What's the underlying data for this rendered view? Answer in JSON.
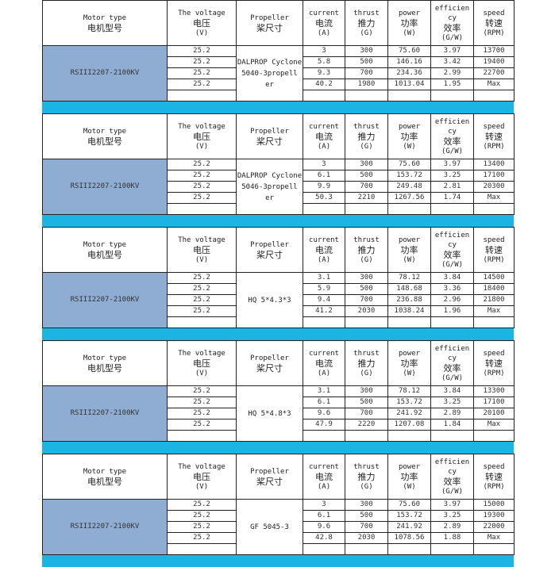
{
  "header": {
    "motor": {
      "en": "Motor type",
      "cn": "电机型号"
    },
    "voltage": {
      "en": "The voltage",
      "cn": "电压",
      "unit": "(V)"
    },
    "propeller": {
      "en": "Propeller",
      "cn": "桨尺寸"
    },
    "current": {
      "en": "current",
      "cn": "电流",
      "unit": "(A)"
    },
    "thrust": {
      "en": "thrust",
      "cn": "推力",
      "unit": "(G)"
    },
    "power": {
      "en": "power",
      "cn": "功率",
      "unit": "(W)"
    },
    "efficiency": {
      "en": "efficien cy",
      "cn": "效率",
      "unit": "(G/W)"
    },
    "speed": {
      "en": "speed",
      "cn": "转速",
      "unit": "(RPM)"
    }
  },
  "colors": {
    "band": "#1cb4e2",
    "motor_cell": "#8fadd3"
  },
  "blocks": [
    {
      "motor": "RSIII2207-2100KV",
      "propeller": "DALPROP Cyclone 5040-3propell er",
      "rows": [
        [
          "25.2",
          "3",
          "300",
          "75.60",
          "3.97",
          "13700"
        ],
        [
          "25.2",
          "5.8",
          "500",
          "146.16",
          "3.42",
          "19400"
        ],
        [
          "25.2",
          "9.3",
          "700",
          "234.36",
          "2.99",
          "22700"
        ],
        [
          "25.2",
          "40.2",
          "1980",
          "1013.04",
          "1.95",
          "Max"
        ]
      ]
    },
    {
      "motor": "RSIII2207-2100KV",
      "propeller": "DALPROP Cyclone 5046-3propell er",
      "rows": [
        [
          "25.2",
          "3",
          "300",
          "75.60",
          "3.97",
          "13400"
        ],
        [
          "25.2",
          "6.1",
          "500",
          "153.72",
          "3.25",
          "17100"
        ],
        [
          "25.2",
          "9.9",
          "700",
          "249.48",
          "2.81",
          "20300"
        ],
        [
          "25.2",
          "50.3",
          "2210",
          "1267.56",
          "1.74",
          "Max"
        ]
      ]
    },
    {
      "motor": "RSIII2207-2100KV",
      "propeller": "HQ 5*4.3*3",
      "rows": [
        [
          "25.2",
          "3.1",
          "300",
          "78.12",
          "3.84",
          "14500"
        ],
        [
          "25.2",
          "5.9",
          "500",
          "148.68",
          "3.36",
          "18400"
        ],
        [
          "25.2",
          "9.4",
          "700",
          "236.88",
          "2.96",
          "21800"
        ],
        [
          "25.2",
          "41.2",
          "2030",
          "1038.24",
          "1.96",
          "Max"
        ]
      ]
    },
    {
      "motor": "RSIII2207-2100KV",
      "propeller": "HQ 5*4.8*3",
      "rows": [
        [
          "25.2",
          "3.1",
          "300",
          "78.12",
          "3.84",
          "13300"
        ],
        [
          "25.2",
          "6.1",
          "500",
          "153.72",
          "3.25",
          "17100"
        ],
        [
          "25.2",
          "9.6",
          "700",
          "241.92",
          "2.89",
          "20100"
        ],
        [
          "25.2",
          "47.9",
          "2220",
          "1207.08",
          "1.84",
          "Max"
        ]
      ]
    },
    {
      "motor": "RSIII2207-2100KV",
      "propeller": "GF 5045-3",
      "rows": [
        [
          "25.2",
          "3",
          "300",
          "75.60",
          "3.97",
          "15000"
        ],
        [
          "25.2",
          "6.1",
          "500",
          "153.72",
          "3.25",
          "19300"
        ],
        [
          "25.2",
          "9.6",
          "700",
          "241.92",
          "2.89",
          "22000"
        ],
        [
          "25.2",
          "42.8",
          "2030",
          "1078.56",
          "1.88",
          "Max"
        ]
      ]
    }
  ]
}
